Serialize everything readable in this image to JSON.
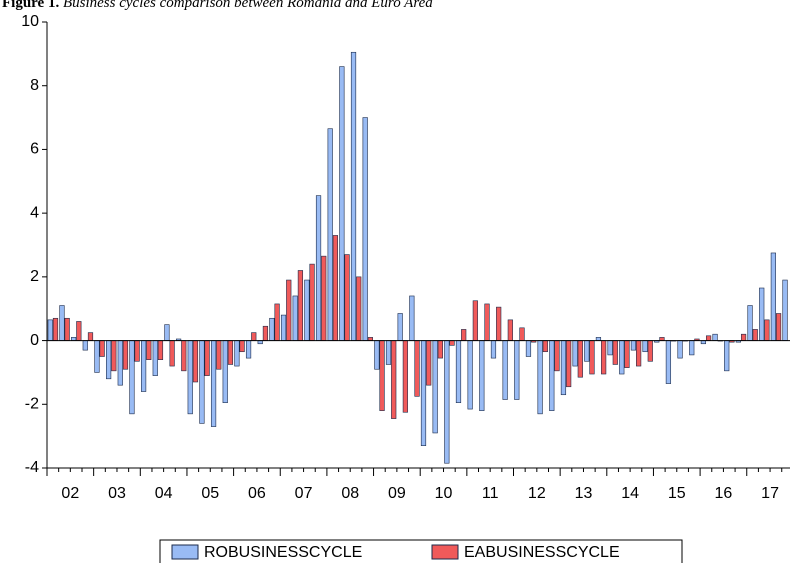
{
  "chart_data": {
    "type": "bar",
    "title_label": "Figure 1.",
    "title": "Business cycles comparison between Romania and Euro Area",
    "categories": [
      "02",
      null,
      null,
      null,
      "03",
      null,
      null,
      null,
      "04",
      null,
      null,
      null,
      "05",
      null,
      null,
      null,
      "06",
      null,
      null,
      null,
      "07",
      null,
      null,
      null,
      "08",
      null,
      null,
      null,
      "09",
      null,
      null,
      null,
      "10",
      null,
      null,
      null,
      "11",
      null,
      null,
      null,
      "12",
      null,
      null,
      null,
      "13",
      null,
      null,
      null,
      "14",
      null,
      null,
      null,
      "15",
      null,
      null,
      null,
      "16",
      null,
      null,
      null,
      "17",
      null,
      null,
      null
    ],
    "series": [
      {
        "name": "ROBUSINESSCYCLE",
        "color": "#99bbf4",
        "values": [
          0.65,
          1.1,
          0.1,
          -0.3,
          -1.0,
          -1.2,
          -1.4,
          -2.3,
          -1.6,
          -1.1,
          0.5,
          0.05,
          -2.3,
          -2.6,
          -2.7,
          -1.95,
          -0.8,
          -0.55,
          -0.1,
          0.7,
          0.8,
          1.4,
          1.9,
          4.55,
          6.65,
          8.6,
          9.05,
          7.0,
          -0.9,
          -0.75,
          0.85,
          1.4,
          -3.3,
          -2.9,
          -3.85,
          -1.95,
          -2.15,
          -2.2,
          -0.55,
          -1.85,
          -1.85,
          -0.5,
          -2.3,
          -2.2,
          -1.7,
          -0.8,
          -0.65,
          0.1,
          -0.45,
          -1.05,
          -0.3,
          -0.35,
          -0.05,
          -1.35,
          -0.55,
          -0.45,
          -0.1,
          0.2,
          -0.95,
          -0.05,
          1.1,
          1.65,
          2.75,
          1.9
        ]
      },
      {
        "name": "EABUSINESSCYCLE",
        "color": "#f05a5a",
        "values": [
          0.7,
          0.7,
          0.6,
          0.25,
          -0.5,
          -0.95,
          -0.9,
          -0.65,
          -0.6,
          -0.6,
          -0.8,
          -0.95,
          -1.3,
          -1.1,
          -0.9,
          -0.75,
          -0.35,
          0.25,
          0.45,
          1.15,
          1.9,
          2.2,
          2.4,
          2.65,
          3.3,
          2.7,
          2.0,
          0.1,
          -2.2,
          -2.45,
          -2.25,
          -1.75,
          -1.4,
          -0.55,
          -0.15,
          0.35,
          1.25,
          1.15,
          1.05,
          0.65,
          0.4,
          -0.05,
          -0.35,
          -0.95,
          -1.45,
          -1.15,
          -1.05,
          -1.05,
          -0.75,
          -0.85,
          -0.8,
          -0.65,
          0.1,
          0.0,
          0.0,
          0.05,
          0.15,
          0.0,
          -0.05,
          0.2,
          0.35,
          0.65,
          0.85,
          null
        ]
      }
    ],
    "ylim": [
      -4,
      10
    ],
    "yticks": [
      -4,
      -2,
      0,
      2,
      4,
      6,
      8,
      10
    ],
    "grid": false,
    "legend": "bottom"
  }
}
